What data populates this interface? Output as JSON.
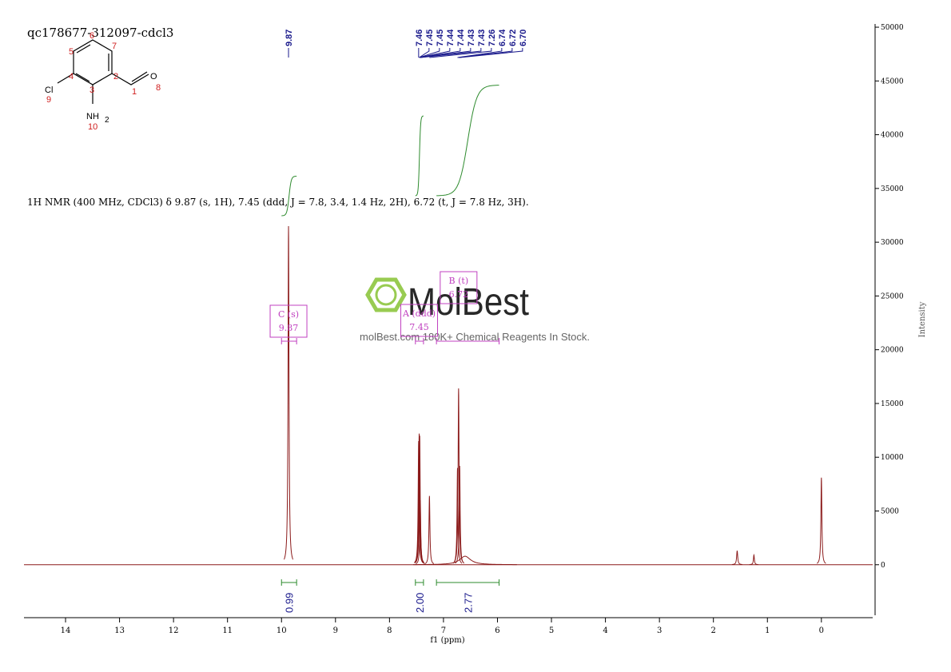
{
  "chart_data": {
    "type": "nmr",
    "title": "qc178677-312097-cdcl3",
    "description": "1H NMR (400 MHz, CDCl3) δ 9.87 (s, 1H), 7.45 (ddd, J = 7.8, 3.4, 1.4 Hz, 2H), 6.72 (t, J = 7.8 Hz, 3H).",
    "xlabel": "f1 (ppm)",
    "ylabel": "Intensity",
    "color": "#8b1a1a",
    "label_color": "#1a1a8c",
    "integral_color": "#2e8b2e",
    "multiplet_color": "#c040c0",
    "x": [
      9.87,
      7.46,
      7.45,
      7.44,
      7.43,
      7.26,
      6.74,
      6.72,
      6.7,
      6.6,
      1.56,
      1.25,
      0.0
    ],
    "values": [
      31500,
      11500,
      12200,
      12000,
      6000,
      6400,
      9000,
      16400,
      9200,
      800,
      1300,
      900,
      8100
    ],
    "widths": [
      0.003,
      0.003,
      0.003,
      0.003,
      0.003,
      0.003,
      0.003,
      0.003,
      0.003,
      0.12,
      0.012,
      0.008,
      0.003
    ],
    "peak_labels": [
      9.87,
      7.46,
      7.45,
      7.45,
      7.44,
      7.44,
      7.43,
      7.43,
      7.26,
      6.74,
      6.72,
      {
        "value": 6.7,
        "label": "6.70"
      }
    ],
    "integrals": {
      "values": [
        0.99,
        2,
        2.77
      ],
      "value_labels": [
        "0.99",
        "2.00",
        "2.77"
      ],
      "ranges": [
        [
          10.0,
          9.72
        ],
        [
          7.52,
          7.37
        ],
        [
          7.13,
          5.97
        ]
      ]
    },
    "multiplets": [
      {
        "name": "C (s)",
        "shift": 9.87
      },
      {
        "name": "A (ddd)",
        "shift": 7.45
      },
      {
        "name": "B (t)",
        "shift": 6.72
      }
    ],
    "xlim": [
      14.77,
      -0.95
    ],
    "xticks": [
      14,
      13,
      12,
      11,
      10,
      9,
      8,
      7,
      6,
      5,
      4,
      3,
      2,
      1,
      0
    ],
    "ylim": [
      -4700,
      50300
    ],
    "yticks": [
      0,
      5000,
      10000,
      15000,
      20000,
      25000,
      30000,
      35000,
      40000,
      45000,
      50000
    ]
  },
  "structure": {
    "atoms": [
      "Cl",
      "NH",
      "2",
      "O"
    ],
    "numbers": [
      "1",
      "2",
      "3",
      "4",
      "5",
      "6",
      "7",
      "8",
      "9",
      "10"
    ]
  },
  "watermark": {
    "brand": "MolBest",
    "tagline": "molBest.com 180K+ Chemical Reagents In Stock."
  }
}
